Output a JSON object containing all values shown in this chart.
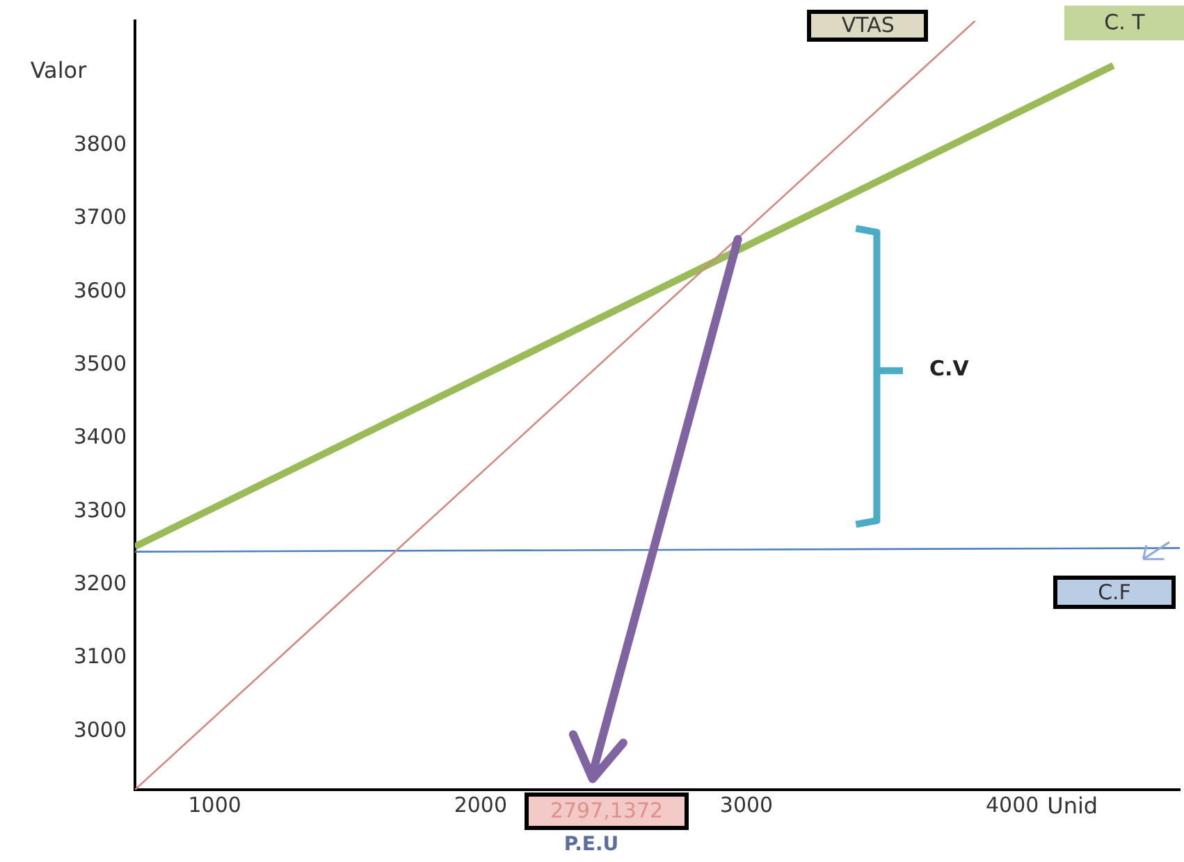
{
  "chart_data": {
    "type": "line",
    "xlabel": "Unid",
    "ylabel": "Valor",
    "xlim": [
      700,
      4630
    ],
    "xticks": [
      1000,
      2000,
      3000,
      4000
    ],
    "ylim": [
      2920,
      3970
    ],
    "yticks": [
      3000,
      3100,
      3200,
      3300,
      3400,
      3500,
      3600,
      3700,
      3800
    ],
    "series": [
      {
        "name": "VTAS",
        "color": "#d08a80",
        "x": [
          700,
          3860
        ],
        "values": [
          2920,
          3970
        ]
      },
      {
        "name": "C. T",
        "color": "#9bbb59",
        "x": [
          700,
          4380
        ],
        "values": [
          3252,
          3909
        ]
      },
      {
        "name": "C.F",
        "color": "#4f81bd",
        "x": [
          700,
          4630
        ],
        "values": [
          3245,
          3250
        ]
      }
    ],
    "annotations": [
      "C.V",
      "2797,1372",
      "P.E.U"
    ],
    "grid": false,
    "legend": false
  }
}
